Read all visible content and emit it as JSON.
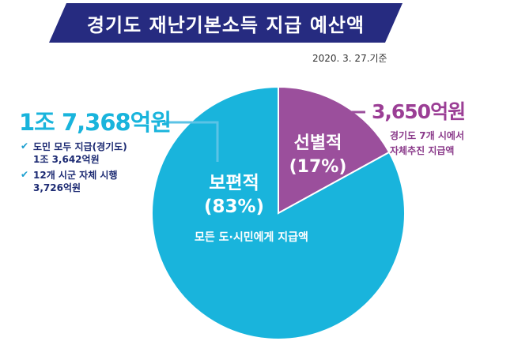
{
  "header": {
    "title": "경기도 재난기본소득 지급 예산액",
    "as_of": "2020. 3. 27.기준"
  },
  "colors": {
    "universal": "#19b4dc",
    "selective": "#9b4f9c",
    "title_bg": "#262b80",
    "connector": "#5bc3e6"
  },
  "universal": {
    "amount": "1조 7,368억원",
    "label": "보편적",
    "percent": "(83%)",
    "description": "모든 도·시민에게 지급액",
    "breakdown": [
      {
        "line1": "도민 모두 지급(경기도)",
        "line2": "1조 3,642억원",
        "icon": "check-icon"
      },
      {
        "line1": "12개 시군 자체 시행",
        "line2": "3,726억원",
        "icon": "check-icon"
      }
    ]
  },
  "selective": {
    "amount": "3,650억원",
    "label": "선별적",
    "percent": "(17%)",
    "note_lines": [
      "경기도 7개 시에서",
      "자체추진 지급액"
    ]
  },
  "chart_data": {
    "type": "pie",
    "title": "경기도 재난기본소득 지급 예산액",
    "slices": [
      {
        "label": "보편적",
        "value": 83,
        "amount": "1조 7,368억원"
      },
      {
        "label": "선별적",
        "value": 17,
        "amount": "3,650억원"
      }
    ]
  }
}
